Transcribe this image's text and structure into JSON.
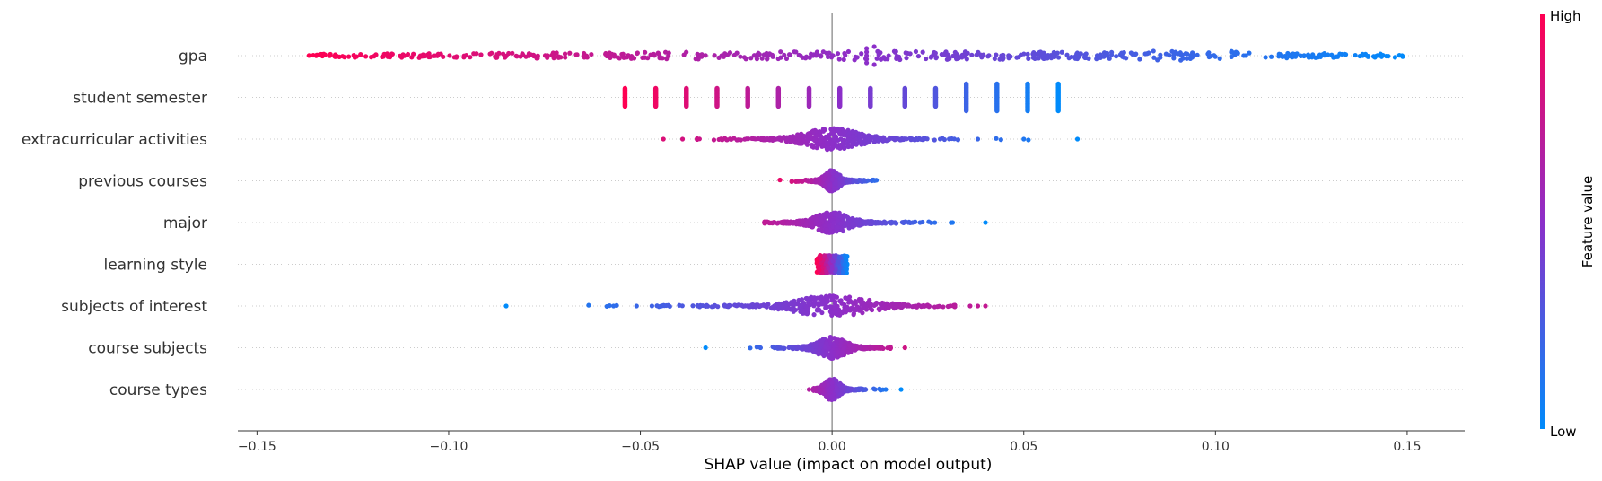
{
  "chart_data": {
    "type": "scatter",
    "subtype": "shap-beeswarm",
    "xlabel": "SHAP value (impact on model output)",
    "xlim": [
      -0.155,
      0.165
    ],
    "xticks": [
      -0.15,
      -0.1,
      -0.05,
      0.0,
      0.05,
      0.1,
      0.15
    ],
    "xtick_labels": [
      "−0.15",
      "−0.10",
      "−0.05",
      "0.00",
      "0.05",
      "0.10",
      "0.15"
    ],
    "zero_line": true,
    "colorbar": {
      "label": "Feature value",
      "high_label": "High",
      "low_label": "Low",
      "high_color": "#ff0052",
      "mid_color": "#8c2fc9",
      "low_color": "#008bfb"
    },
    "features": [
      {
        "name": "gpa",
        "min": -0.137,
        "max": 0.15,
        "style": "spread",
        "high_side": "left",
        "points": 520
      },
      {
        "name": "student semester",
        "style": "clusters",
        "high_side": "left",
        "clusters": [
          -0.054,
          -0.046,
          -0.038,
          -0.03,
          -0.022,
          -0.014,
          -0.006,
          0.002,
          0.01,
          0.019,
          0.027,
          0.035,
          0.043,
          0.051,
          0.059
        ]
      },
      {
        "name": "extracurricular activities",
        "min": -0.044,
        "max": 0.064,
        "style": "dense",
        "high_side": "left",
        "outliers": [
          -0.044,
          -0.039,
          0.038,
          0.05,
          0.064
        ]
      },
      {
        "name": "previous courses",
        "min": -0.017,
        "max": 0.017,
        "style": "dense",
        "high_side": "left"
      },
      {
        "name": "major",
        "min": -0.022,
        "max": 0.04,
        "style": "dense",
        "high_side": "left",
        "outliers": [
          0.016,
          0.021,
          0.04
        ]
      },
      {
        "name": "learning style",
        "min": -0.004,
        "max": 0.004,
        "style": "block",
        "high_side": "left"
      },
      {
        "name": "subjects of interest",
        "min": -0.085,
        "max": 0.04,
        "style": "dense",
        "high_side": "right",
        "outliers": [
          -0.085,
          -0.057,
          -0.051,
          -0.035,
          -0.028,
          0.025,
          0.036,
          0.038,
          0.04
        ]
      },
      {
        "name": "course subjects",
        "min": -0.033,
        "max": 0.019,
        "style": "dense",
        "high_side": "right",
        "outliers": [
          -0.033,
          0.019
        ]
      },
      {
        "name": "course types",
        "min": -0.006,
        "max": 0.018,
        "style": "dense",
        "high_side": "left",
        "outliers": [
          -0.006,
          0.014,
          0.018
        ]
      }
    ]
  }
}
